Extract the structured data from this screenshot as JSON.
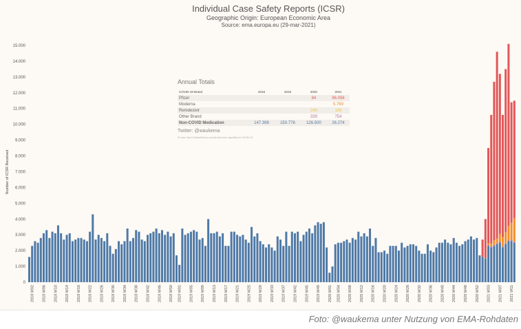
{
  "chart_data": {
    "type": "bar",
    "stacked": true,
    "title": "Individual Case Safety Reports (ICSR)",
    "subtitle": "Geographic Origin: European Economic Area",
    "source": "Source: ema.europa.eu (29-mar-2021)",
    "ylabel": "Number of ICSR Received",
    "xlabel": "",
    "ylim": [
      0,
      15000
    ],
    "y_ticks": [
      0,
      1000,
      2000,
      3000,
      4000,
      5000,
      6000,
      7000,
      8000,
      9000,
      10000,
      11000,
      12000,
      13000,
      14000,
      15000
    ],
    "y_tick_labels": [
      "0",
      "1.000",
      "2.000",
      "3.000",
      "4.000",
      "5.000",
      "6.000",
      "7.000",
      "8.000",
      "9.000",
      "10.000",
      "11.000",
      "12.000",
      "13.000",
      "14.000",
      "15.000"
    ],
    "colors": {
      "non_covid": "#4e79a7",
      "pfizer": "#e15759",
      "moderna": "#f28e2b",
      "other_brand": "#b07aa1"
    },
    "non_covid_weekly": {
      "2018": [
        1600,
        2300,
        2600,
        2500,
        2800,
        3100,
        3300,
        2800,
        3200,
        3100,
        3600,
        3100,
        2700,
        3000,
        3100,
        2600,
        2700,
        2800,
        2800,
        2700,
        2600,
        3200,
        4300,
        2700,
        3000,
        2800,
        2600,
        3100,
        2300,
        1800,
        2100,
        2600,
        2400,
        2600,
        3400,
        2600,
        2800,
        3300,
        3200,
        2700,
        2600,
        3000,
        3100,
        3200,
        3400,
        3100,
        3300,
        3000,
        3200,
        2900,
        3100,
        1700
      ],
      "2019": [
        1100,
        3400,
        3000,
        3100,
        3200,
        3300,
        3200,
        2700,
        2800,
        2300,
        4000,
        3100,
        3100,
        3200,
        2900,
        3100,
        2300,
        2300,
        3200,
        3200,
        3000,
        2900,
        3000,
        2700,
        2500,
        3500,
        2900,
        3100,
        2600,
        2400,
        2200,
        2400,
        2200,
        2000,
        2900,
        2700,
        2300,
        3200,
        2300,
        3200,
        3100,
        3200,
        2600,
        3000,
        3200,
        3400,
        3100,
        3600,
        3800,
        3700,
        3800,
        2200
      ],
      "2020": [
        600,
        1000,
        2400,
        2500,
        2500,
        2600,
        2700,
        2500,
        2800,
        2700,
        3200,
        2900,
        3100,
        2900,
        3400,
        2300,
        2800,
        1900,
        1900,
        2000,
        1800,
        2300,
        2300,
        2300,
        2000,
        2500,
        2200,
        2300,
        2400,
        2400,
        2300,
        2000,
        1800,
        1800,
        2400,
        2000,
        1900,
        2200,
        2500,
        2500,
        2700,
        2500,
        2400,
        2800,
        2500,
        2300,
        2400,
        2600,
        2700,
        2900,
        2700,
        2800,
        1700
      ],
      "2021": [
        1600,
        1500,
        2300,
        2200,
        2300,
        2400,
        2500,
        2200,
        2400,
        2600,
        2600,
        2500
      ]
    },
    "covid_2021": {
      "weeks": [
        "2021 W01",
        "2021 W02",
        "2021 W03",
        "2021 W04",
        "2021 W05",
        "2021 W06",
        "2021 W07",
        "2021 W08",
        "2021 W09",
        "2021 W10",
        "2021 W11",
        "2021 W12"
      ],
      "other_brand": [
        0,
        50,
        60,
        60,
        60,
        70,
        70,
        60,
        70,
        70,
        60,
        60
      ],
      "moderna": [
        0,
        0,
        100,
        200,
        300,
        300,
        500,
        600,
        700,
        900,
        1100,
        1500
      ],
      "pfizer": [
        1100,
        2450,
        6040,
        8140,
        10040,
        11830,
        10130,
        7740,
        10330,
        11530,
        7640,
        7440
      ]
    },
    "x_ticks": [
      {
        "label": "2018 W02",
        "week_index": 1
      },
      {
        "label": "2018 W06",
        "week_index": 5
      },
      {
        "label": "2018 W10",
        "week_index": 9
      },
      {
        "label": "2018 W14",
        "week_index": 13
      },
      {
        "label": "2018 W18",
        "week_index": 17
      },
      {
        "label": "2018 W22",
        "week_index": 21
      },
      {
        "label": "2018 W26",
        "week_index": 25
      },
      {
        "label": "2018 W30",
        "week_index": 29
      },
      {
        "label": "2018 W34",
        "week_index": 33
      },
      {
        "label": "2018 W38",
        "week_index": 37
      },
      {
        "label": "2018 W42",
        "week_index": 41
      },
      {
        "label": "2018 W46",
        "week_index": 45
      },
      {
        "label": "2018 W50",
        "week_index": 49
      },
      {
        "label": "2019 W01",
        "week_index": 52
      },
      {
        "label": "2019 W05",
        "week_index": 56
      },
      {
        "label": "2019 W09",
        "week_index": 60
      },
      {
        "label": "2019 W13",
        "week_index": 64
      },
      {
        "label": "2019 W17",
        "week_index": 68
      },
      {
        "label": "2019 W21",
        "week_index": 72
      },
      {
        "label": "2019 W25",
        "week_index": 76
      },
      {
        "label": "2019 W29",
        "week_index": 80
      },
      {
        "label": "2019 W33",
        "week_index": 84
      },
      {
        "label": "2019 W37",
        "week_index": 88
      },
      {
        "label": "2019 W41",
        "week_index": 92
      },
      {
        "label": "2019 W45",
        "week_index": 96
      },
      {
        "label": "2019 W49",
        "week_index": 100
      },
      {
        "label": "2020 W01",
        "week_index": 104
      },
      {
        "label": "2020 W04",
        "week_index": 107
      },
      {
        "label": "2020 W08",
        "week_index": 111
      },
      {
        "label": "2020 W12",
        "week_index": 115
      },
      {
        "label": "2020 W16",
        "week_index": 119
      },
      {
        "label": "2020 W20",
        "week_index": 123
      },
      {
        "label": "2020 W24",
        "week_index": 127
      },
      {
        "label": "2020 W28",
        "week_index": 131
      },
      {
        "label": "2020 W32",
        "week_index": 135
      },
      {
        "label": "2020 W36",
        "week_index": 139
      },
      {
        "label": "2020 W40",
        "week_index": 143
      },
      {
        "label": "2020 W44",
        "week_index": 147
      },
      {
        "label": "2020 W48",
        "week_index": 151
      },
      {
        "label": "2020 W52",
        "week_index": 155
      },
      {
        "label": "2021 W03",
        "week_index": 159
      },
      {
        "label": "2021 W07",
        "week_index": 163
      },
      {
        "label": "2021 W11",
        "week_index": 167
      }
    ]
  },
  "annual_totals": {
    "heading": "Annual Totals",
    "columns": [
      "COVID-19 Brand",
      "2018",
      "2019",
      "2020",
      "2021"
    ],
    "rows": [
      {
        "brand": "Pfizer",
        "y2018": "",
        "y2019": "",
        "y2020": "84",
        "y2021": "96.056"
      },
      {
        "brand": "Moderna",
        "y2018": "",
        "y2019": "",
        "y2020": "",
        "y2021": "5.769"
      },
      {
        "brand": "Remdesivir",
        "y2018": "",
        "y2019": "",
        "y2020": "246",
        "y2021": "189"
      },
      {
        "brand": "Other Brand",
        "y2018": "",
        "y2019": "",
        "y2020": "339",
        "y2021": "754"
      },
      {
        "brand": "Non-COVID Medication",
        "y2018": "147.398",
        "y2019": "150.776",
        "y2020": "126.500",
        "y2021": "26.274"
      }
    ],
    "twitter": "Twitter: @waukema",
    "note": "31-mar: fixed 3 AstraZeneca records that were classified as COVID-19"
  },
  "caption": "Foto: @waukema unter Nutzung von EMA-Rohdaten"
}
